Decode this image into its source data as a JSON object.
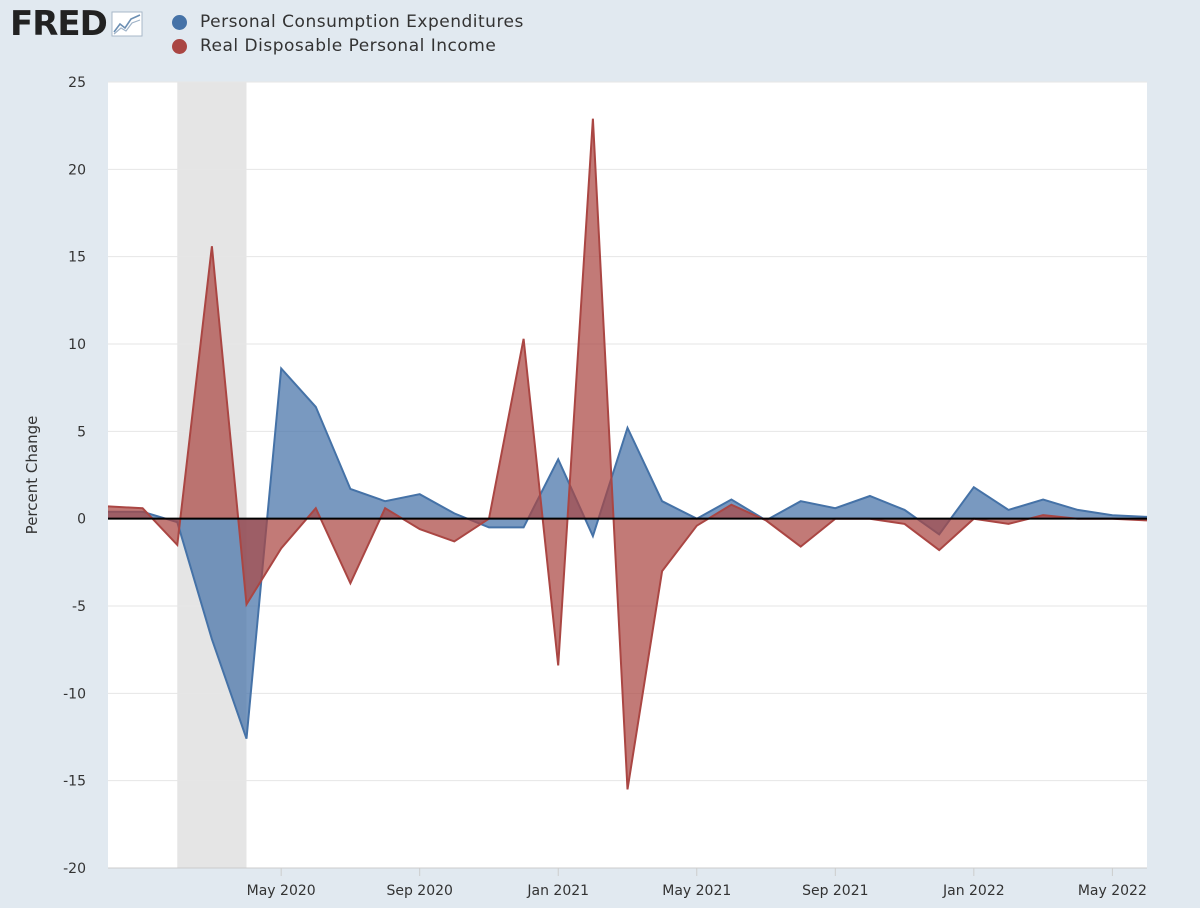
{
  "brand": {
    "name": "FRED"
  },
  "colors": {
    "pce": "#4572a7",
    "rdpi": "#aa4643",
    "recession": "#e5e5e5"
  },
  "chart_data": {
    "type": "area",
    "title": "",
    "ylabel": "Percent Change",
    "xlabel": "",
    "ylim": [
      -20,
      25
    ],
    "yticks": [
      -20,
      -15,
      -10,
      -5,
      0,
      5,
      10,
      15,
      20,
      25
    ],
    "x_range": [
      "2019-12",
      "2022-06"
    ],
    "xticks": [
      {
        "date": "2020-05",
        "label": "May 2020"
      },
      {
        "date": "2020-09",
        "label": "Sep 2020"
      },
      {
        "date": "2021-01",
        "label": "Jan 2021"
      },
      {
        "date": "2021-05",
        "label": "May 2021"
      },
      {
        "date": "2021-09",
        "label": "Sep 2021"
      },
      {
        "date": "2022-01",
        "label": "Jan 2022"
      },
      {
        "date": "2022-05",
        "label": "May 2022"
      }
    ],
    "recession": [
      "2020-02",
      "2020-04"
    ],
    "grid": true,
    "legend_position": "top-left",
    "x": [
      "2019-12",
      "2020-01",
      "2020-02",
      "2020-03",
      "2020-04",
      "2020-05",
      "2020-06",
      "2020-07",
      "2020-08",
      "2020-09",
      "2020-10",
      "2020-11",
      "2020-12",
      "2021-01",
      "2021-02",
      "2021-03",
      "2021-04",
      "2021-05",
      "2021-06",
      "2021-07",
      "2021-08",
      "2021-09",
      "2021-10",
      "2021-11",
      "2021-12",
      "2022-01",
      "2022-02",
      "2022-03",
      "2022-04",
      "2022-05",
      "2022-06"
    ],
    "series": [
      {
        "name": "Personal Consumption Expenditures",
        "values": [
          0.4,
          0.4,
          -0.2,
          -6.9,
          -12.6,
          8.6,
          6.4,
          1.7,
          1.0,
          1.4,
          0.3,
          -0.5,
          -0.5,
          3.4,
          -1.0,
          5.2,
          1.0,
          0.0,
          1.1,
          -0.1,
          1.0,
          0.6,
          1.3,
          0.5,
          -0.9,
          1.8,
          0.5,
          1.1,
          0.5,
          0.2,
          0.1
        ]
      },
      {
        "name": "Real Disposable Personal Income",
        "values": [
          0.7,
          0.6,
          -1.5,
          15.6,
          -4.9,
          -1.7,
          0.6,
          -3.7,
          0.6,
          -0.6,
          -1.3,
          0.0,
          10.3,
          -8.4,
          22.9,
          -15.5,
          -3.0,
          -0.4,
          0.8,
          -0.1,
          -1.6,
          0.0,
          0.0,
          -0.3,
          -1.8,
          0.0,
          -0.3,
          0.2,
          0.0,
          0.0,
          -0.1
        ]
      }
    ]
  }
}
